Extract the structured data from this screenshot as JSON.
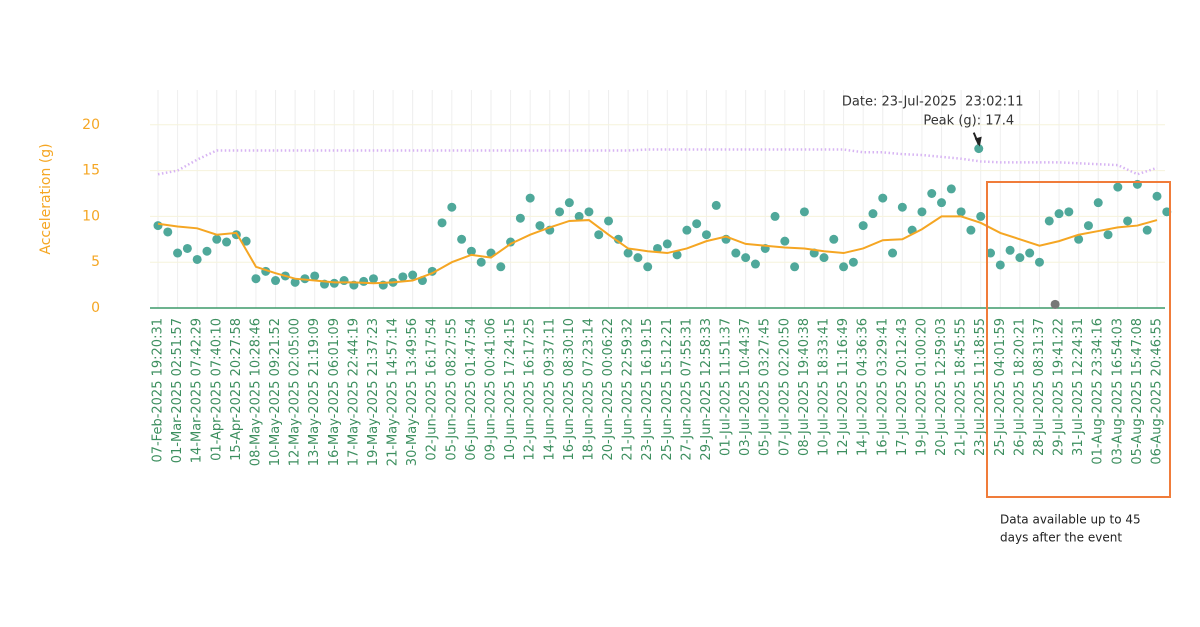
{
  "chart_data": {
    "type": "line",
    "ylabel": "Acceleration (g)",
    "categories": [
      "07-Feb-2025 19:20:31",
      "01-Mar-2025 02:51:57",
      "14-Mar-2025 07:42:29",
      "01-Apr-2025 07:40:10",
      "15-Apr-2025 20:27:58",
      "08-May-2025 10:28:46",
      "10-May-2025 09:21:52",
      "12-May-2025 02:05:00",
      "13-May-2025 21:19:09",
      "16-May-2025 06:01:09",
      "17-May-2025 22:44:19",
      "19-May-2025 21:37:23",
      "21-May-2025 14:57:14",
      "30-May-2025 13:49:56",
      "02-Jun-2025 16:17:54",
      "05-Jun-2025 08:27:55",
      "06-Jun-2025 01:47:54",
      "09-Jun-2025 00:41:06",
      "10-Jun-2025 17:24:15",
      "12-Jun-2025 16:17:25",
      "14-Jun-2025 09:37:11",
      "16-Jun-2025 08:30:10",
      "18-Jun-2025 07:23:14",
      "20-Jun-2025 00:06:22",
      "21-Jun-2025 22:59:32",
      "23-Jun-2025 16:19:15",
      "25-Jun-2025 15:12:21",
      "27-Jun-2025 07:55:31",
      "29-Jun-2025 12:58:33",
      "01-Jul-2025 11:51:37",
      "03-Jul-2025 10:44:37",
      "05-Jul-2025 03:27:45",
      "07-Jul-2025 02:20:50",
      "08-Jul-2025 19:40:38",
      "10-Jul-2025 18:33:41",
      "12-Jul-2025 11:16:49",
      "14-Jul-2025 04:36:36",
      "16-Jul-2025 03:29:41",
      "17-Jul-2025 20:12:43",
      "19-Jul-2025 01:00:20",
      "20-Jul-2025 12:59:03",
      "21-Jul-2025 18:45:55",
      "23-Jul-2025 11:18:55",
      "25-Jul-2025 04:01:59",
      "26-Jul-2025 18:20:21",
      "28-Jul-2025 08:31:37",
      "29-Jul-2025 19:41:22",
      "31-Jul-2025 12:24:31",
      "01-Aug-2025 23:34:16",
      "03-Aug-2025 16:54:03",
      "05-Aug-2025 15:47:08",
      "06-Aug-2025 20:46:55"
    ],
    "ylim": [
      0,
      23.8
    ],
    "yticks": [
      0,
      5,
      10,
      15,
      20
    ],
    "grid": true,
    "series": [
      {
        "type": "scatter",
        "color": "#4fa89a",
        "x": [
          0,
          0.5,
          1,
          1.5,
          2,
          2.5,
          3,
          3.5,
          4,
          4.5,
          5,
          5.5,
          6,
          6.5,
          7,
          7.5,
          8,
          8.5,
          9,
          9.5,
          10,
          10.5,
          11,
          11.5,
          12,
          12.5,
          13,
          13.5,
          14,
          14.5,
          15,
          15.5,
          16,
          16.5,
          17,
          17.5,
          18,
          18.5,
          19,
          19.5,
          20,
          20.5,
          21,
          21.5,
          22,
          22.5,
          23,
          23.5,
          24,
          24.5,
          25,
          25.5,
          26,
          26.5,
          27,
          27.5,
          28,
          28.5,
          29,
          29.5,
          30,
          30.5,
          31,
          31.5,
          32,
          32.5,
          33,
          33.5,
          34,
          34.5,
          35,
          35.5,
          36,
          36.5,
          37,
          37.5,
          38,
          38.5,
          39,
          39.5,
          40,
          40.5,
          41,
          41.5,
          42,
          42.5,
          43,
          43.5,
          44,
          44.5,
          45,
          45.5,
          46,
          46.5,
          47,
          47.5,
          48,
          48.5,
          49,
          49.5,
          50,
          50.5,
          51,
          51.5
        ],
        "values": [
          9.0,
          8.3,
          6.0,
          6.5,
          5.3,
          6.2,
          7.5,
          7.2,
          8.0,
          7.3,
          3.2,
          4.0,
          3.0,
          3.5,
          2.8,
          3.2,
          3.5,
          2.6,
          2.7,
          3.0,
          2.5,
          2.9,
          3.2,
          2.5,
          2.8,
          3.4,
          3.6,
          3.0,
          4.0,
          9.3,
          11.0,
          7.5,
          6.2,
          5.0,
          6.0,
          4.5,
          7.2,
          9.8,
          12.0,
          9.0,
          8.5,
          10.5,
          11.5,
          10.0,
          10.5,
          8.0,
          9.5,
          7.5,
          6.0,
          5.5,
          4.5,
          6.5,
          7.0,
          5.8,
          8.5,
          9.2,
          8.0,
          11.2,
          7.5,
          6.0,
          5.5,
          4.8,
          6.5,
          10.0,
          7.3,
          4.5,
          10.5,
          6.0,
          5.5,
          7.5,
          4.5,
          5.0,
          9.0,
          10.3,
          12.0,
          6.0,
          11.0,
          8.5,
          10.5,
          12.5,
          11.5,
          13.0,
          10.5,
          8.5,
          10.0,
          6.0,
          4.7,
          6.3,
          5.5,
          6.0,
          5.0,
          9.5,
          10.3,
          10.5,
          7.5,
          9.0,
          11.5,
          8.0,
          13.2,
          9.5,
          13.5,
          8.5,
          12.2,
          10.5
        ]
      },
      {
        "type": "line",
        "color": "#f5a623",
        "values": [
          9.2,
          8.9,
          8.7,
          8.0,
          8.2,
          4.5,
          3.8,
          3.2,
          3.0,
          2.8,
          2.8,
          2.7,
          2.8,
          3.0,
          3.8,
          5.0,
          5.8,
          5.5,
          7.0,
          8.0,
          8.8,
          9.5,
          9.6,
          8.0,
          6.5,
          6.2,
          6.0,
          6.5,
          7.3,
          7.8,
          7.0,
          6.8,
          6.6,
          6.5,
          6.2,
          6.0,
          6.5,
          7.4,
          7.5,
          8.6,
          10.0,
          10.0,
          9.3,
          8.2,
          7.5,
          6.8,
          7.3,
          8.0,
          8.4,
          8.8,
          9.0,
          9.6
        ]
      },
      {
        "type": "dotted",
        "color": "#d7b4f3",
        "values": [
          14.6,
          15.0,
          16.2,
          17.2,
          17.2,
          17.2,
          17.2,
          17.2,
          17.2,
          17.2,
          17.2,
          17.2,
          17.2,
          17.2,
          17.2,
          17.2,
          17.2,
          17.2,
          17.2,
          17.2,
          17.2,
          17.2,
          17.2,
          17.2,
          17.2,
          17.3,
          17.3,
          17.3,
          17.3,
          17.3,
          17.3,
          17.3,
          17.3,
          17.3,
          17.3,
          17.3,
          17.0,
          17.0,
          16.8,
          16.7,
          16.5,
          16.3,
          16.0,
          15.9,
          15.9,
          15.9,
          15.9,
          15.8,
          15.7,
          15.6,
          14.6,
          15.3
        ]
      },
      {
        "type": "scatter",
        "color": "#777777",
        "x": [
          45.8
        ],
        "values": [
          0.4
        ]
      }
    ],
    "annotation": {
      "x": 41.9,
      "value": 17.4,
      "lines": [
        "Date: 23-Jul-2025  23:02:11",
        "Peak (g): 17.4"
      ]
    },
    "note": [
      "Data available up to 45",
      "days after the event"
    ]
  }
}
